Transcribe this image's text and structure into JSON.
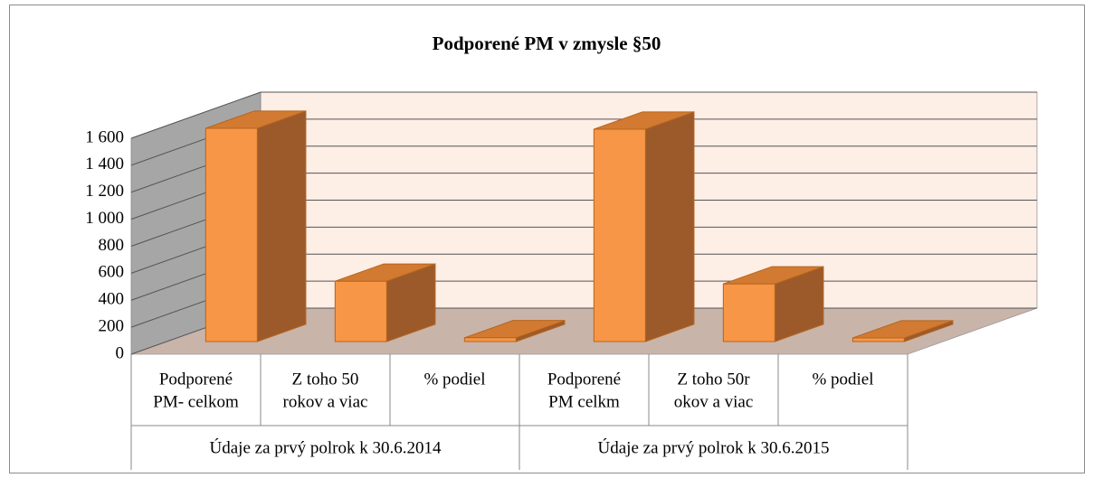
{
  "chart_data": {
    "type": "bar3d",
    "title": "Podporené PM v zmysle §50",
    "categories": [
      [
        "Podporené",
        "PM- celkom"
      ],
      [
        "Z toho 50",
        "rokov a viac"
      ],
      [
        "% podiel"
      ],
      [
        "Podporené",
        "PM celkm"
      ],
      [
        "Z toho 50r",
        "okov a viac"
      ],
      [
        "% podiel"
      ]
    ],
    "groups": [
      "Údaje za prvý polrok k 30.6.2014",
      "Údaje za prvý polrok k 30.6.2015"
    ],
    "values": [
      1580,
      447,
      28,
      1573,
      427,
      27
    ],
    "color": "#f79646",
    "ylim": [
      0,
      1600
    ],
    "yticks": [
      0,
      {
        "value": 200,
        "label": "200"
      },
      {
        "value": 400,
        "label": "400"
      },
      {
        "value": 600,
        "label": "600"
      },
      {
        "value": 800,
        "label": "800"
      },
      {
        "value": 1000,
        "label": "1 000"
      },
      {
        "value": 1200,
        "label": "1 200"
      },
      {
        "value": 1400,
        "label": "1 400"
      },
      {
        "value": 1600,
        "label": "1 600"
      }
    ],
    "grid": true
  }
}
